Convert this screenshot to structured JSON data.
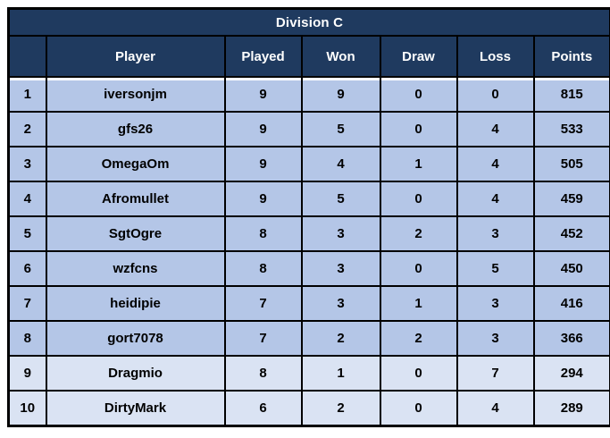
{
  "chart_data": {
    "type": "table",
    "title": "Division C",
    "columns": [
      "",
      "Player",
      "Played",
      "Won",
      "Draw",
      "Loss",
      "Points"
    ],
    "rows": [
      [
        "1",
        "iversonjm",
        "9",
        "9",
        "0",
        "0",
        "815"
      ],
      [
        "2",
        "gfs26",
        "9",
        "5",
        "0",
        "4",
        "533"
      ],
      [
        "3",
        "OmegaOm",
        "9",
        "4",
        "1",
        "4",
        "505"
      ],
      [
        "4",
        "Afromullet",
        "9",
        "5",
        "0",
        "4",
        "459"
      ],
      [
        "5",
        "SgtOgre",
        "8",
        "3",
        "2",
        "3",
        "452"
      ],
      [
        "6",
        "wzfcns",
        "8",
        "3",
        "0",
        "5",
        "450"
      ],
      [
        "7",
        "heidipie",
        "7",
        "3",
        "1",
        "3",
        "416"
      ],
      [
        "8",
        "gort7078",
        "7",
        "2",
        "2",
        "3",
        "366"
      ],
      [
        "9",
        "Dragmio",
        "8",
        "1",
        "0",
        "7",
        "294"
      ],
      [
        "10",
        "DirtyMark",
        "6",
        "2",
        "0",
        "4",
        "289"
      ]
    ],
    "row_shading": [
      "medium",
      "medium",
      "medium",
      "medium",
      "medium",
      "medium",
      "medium",
      "medium",
      "light",
      "light"
    ],
    "layout_hints": {
      "title_row_merged": true,
      "grid": "black solid lines",
      "rank_column_header_empty": true
    },
    "colors": {
      "header_bg": "#1F3A5F",
      "header_text": "#FFFFFF",
      "row_medium": "#B4C6E7",
      "row_light": "#DAE3F3",
      "border": "#000000",
      "cell_text": "#000000",
      "page_bg": "#FFFFFF"
    }
  }
}
